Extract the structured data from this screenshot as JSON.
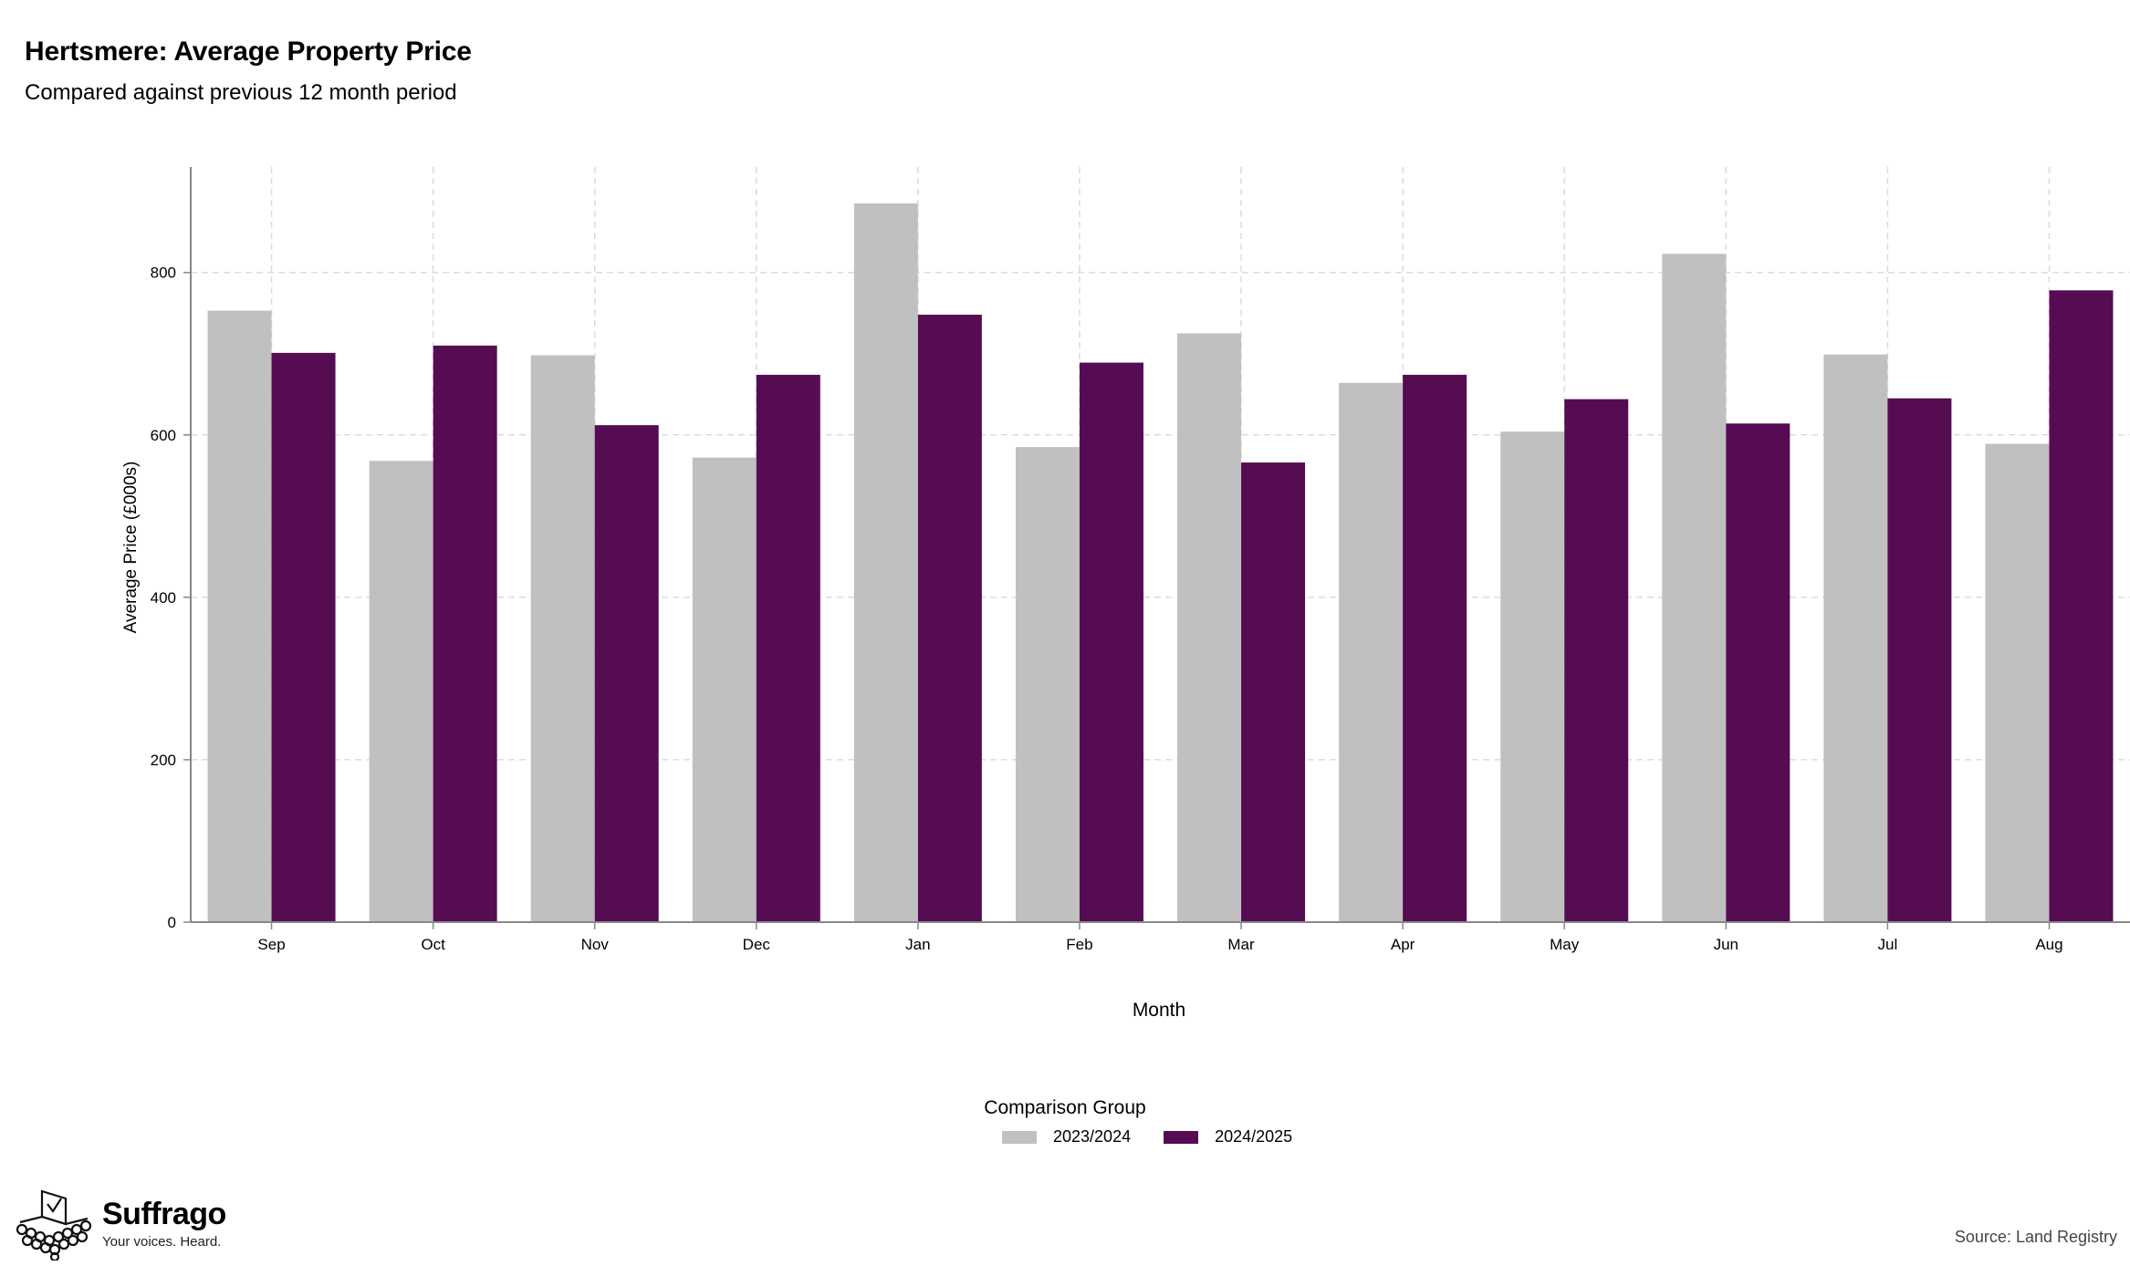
{
  "title": "Hertsmere: Average Property Price",
  "subtitle": "Compared against previous 12 month period",
  "chart_data": {
    "type": "bar",
    "categories": [
      "Sep",
      "Oct",
      "Nov",
      "Dec",
      "Jan",
      "Feb",
      "Mar",
      "Apr",
      "May",
      "Jun",
      "Jul",
      "Aug"
    ],
    "series": [
      {
        "name": "2023/2024",
        "color": "#c0c0c0",
        "values": [
          753,
          568,
          698,
          572,
          885,
          585,
          725,
          664,
          604,
          823,
          699,
          589
        ]
      },
      {
        "name": "2024/2025",
        "color": "#550c53",
        "values": [
          701,
          710,
          612,
          674,
          748,
          689,
          566,
          674,
          644,
          614,
          645,
          778
        ]
      }
    ],
    "xlabel": "Month",
    "ylabel": "Average Price (£000s)",
    "ylim": [
      0,
      930
    ],
    "yticks": [
      0,
      200,
      400,
      600,
      800
    ],
    "grid": true,
    "legend_title": "Comparison Group",
    "legend_position": "bottom"
  },
  "branding": {
    "name": "Suffrago",
    "tagline": "Your voices. Heard."
  },
  "source": "Source: Land Registry"
}
